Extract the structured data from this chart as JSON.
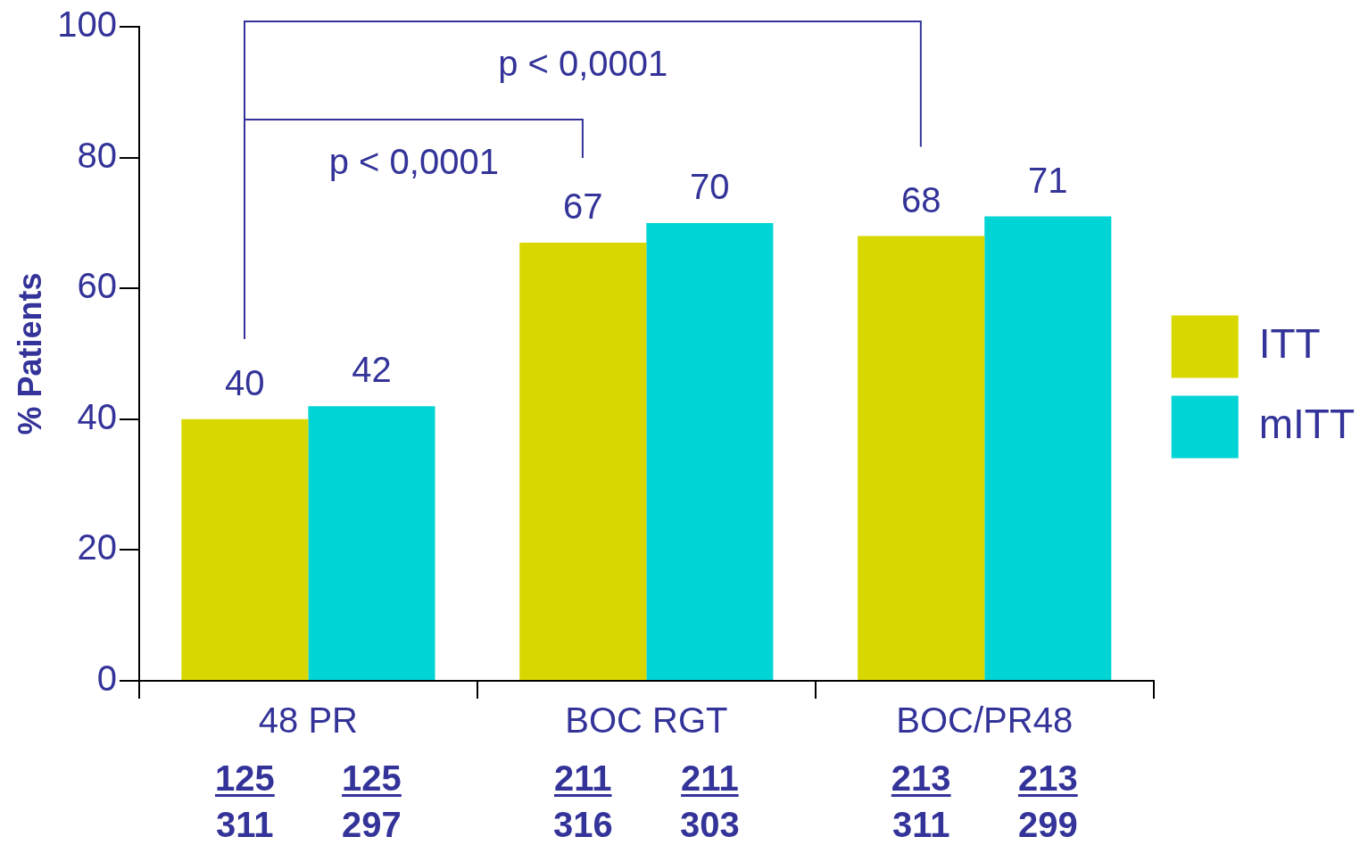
{
  "chart_data": {
    "type": "bar",
    "ylabel": "% Patients",
    "categories": [
      "48 PR",
      "BOC RGT",
      "BOC/PR48"
    ],
    "series": [
      {
        "name": "ITT",
        "color": "#d8d800",
        "values": [
          40,
          67,
          68
        ]
      },
      {
        "name": "mITT",
        "color": "#00d4d4",
        "values": [
          42,
          70,
          71
        ]
      }
    ],
    "ylim": [
      0,
      100
    ],
    "yticks": [
      0,
      20,
      40,
      60,
      80,
      100
    ],
    "grid": false,
    "legend": "right",
    "data_labels": true,
    "annotations": [
      "p < 0,0001",
      "p < 0,0001",
      "125",
      "311",
      "125",
      "297",
      "211",
      "316",
      "211",
      "303",
      "213",
      "311",
      "213",
      "299"
    ]
  }
}
